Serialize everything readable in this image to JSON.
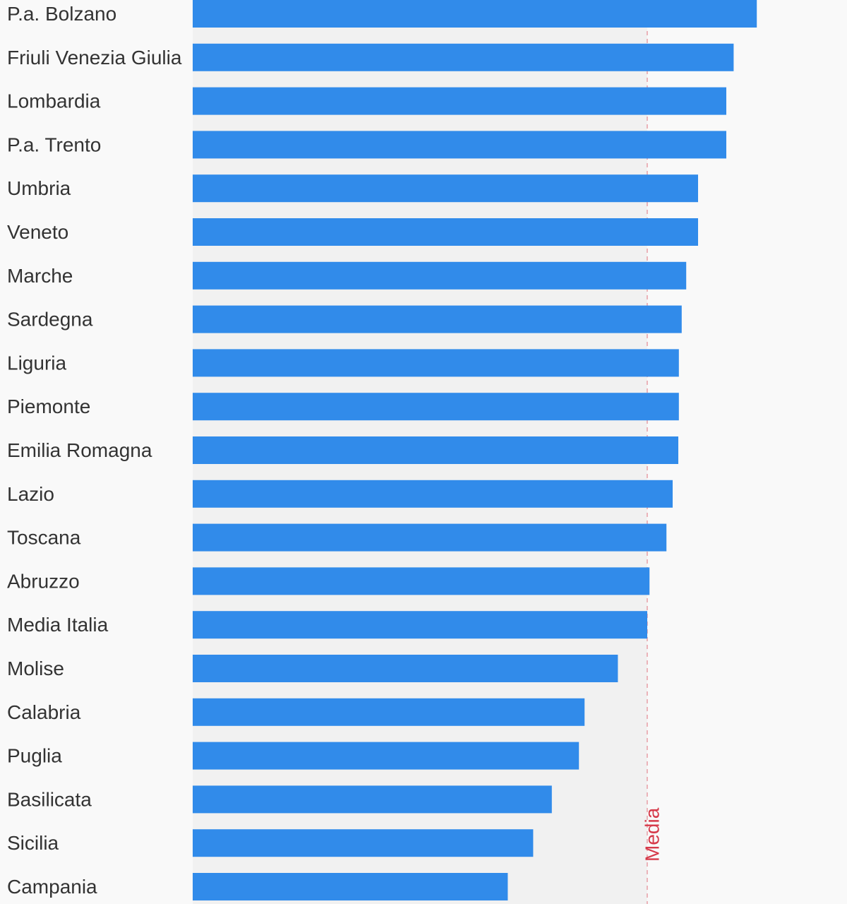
{
  "chart_data": {
    "type": "bar",
    "orientation": "horizontal",
    "categories": [
      "P.a. Bolzano",
      "Friuli Venezia Giulia",
      "Lombardia",
      "P.a. Trento",
      "Umbria",
      "Veneto",
      "Marche",
      "Sardegna",
      "Liguria",
      "Piemonte",
      "Emilia Romagna",
      "Lazio",
      "Toscana",
      "Abruzzo",
      "Media Italia",
      "Molise",
      "Calabria",
      "Puglia",
      "Basilicata",
      "Sicilia",
      "Campania"
    ],
    "values": [
      99.9,
      95.8,
      94.5,
      94.5,
      89.5,
      89.5,
      87.4,
      86.6,
      86.1,
      86.1,
      86.0,
      85.0,
      83.9,
      80.9,
      80.5,
      75.3,
      69.4,
      68.4,
      63.6,
      60.3,
      55.8
    ],
    "xlim": [
      0,
      100
    ],
    "reference_line": {
      "label": "Media",
      "value": 80.5,
      "color": "#d63a4a",
      "shaded_region": "below-reference"
    },
    "bar_color": "#318bea",
    "shade_color": "#f1f1f1",
    "label_color": "#333333",
    "background": "#f9f9f9",
    "grid": false,
    "legend": "none",
    "title": "",
    "xlabel": "",
    "ylabel": ""
  }
}
